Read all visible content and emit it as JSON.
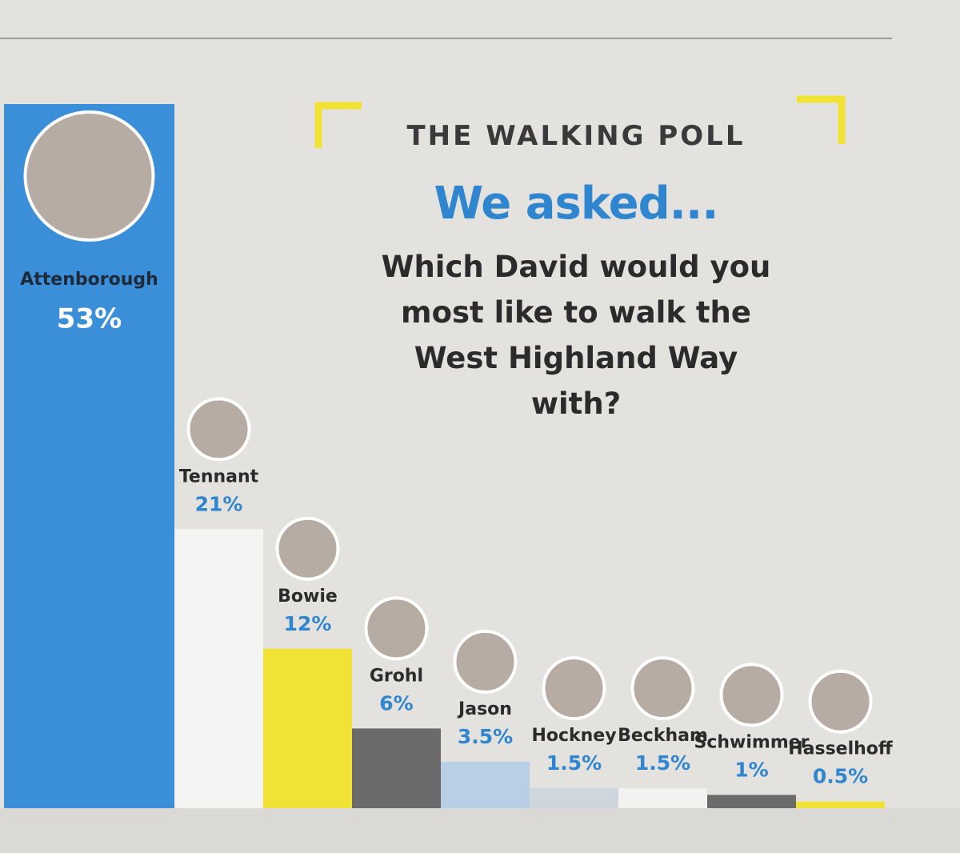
{
  "chart_data": {
    "type": "bar",
    "kicker": "THE WALKING POLL",
    "title": "We asked...",
    "subtitle": "Which David would you most like to walk the West Highland Way with?",
    "categories": [
      "Attenborough",
      "Tennant",
      "Bowie",
      "Grohl",
      "Jason",
      "Hockney",
      "Beckham",
      "Schwimmer",
      "Hasselhoff"
    ],
    "values": [
      53,
      21,
      12,
      6,
      3.5,
      1.5,
      1.5,
      1,
      0.5
    ],
    "value_labels": [
      "53%",
      "21%",
      "12%",
      "6%",
      "3.5%",
      "1.5%",
      "1.5%",
      "1%",
      "0.5%"
    ],
    "colors": [
      "#3a8fd8",
      "#f4f4f2",
      "#f2e236",
      "#6b6b6b",
      "#b8cfe6",
      "#cfd6de",
      "#f2f2f0",
      "#6b6b6b",
      "#f2e236"
    ]
  }
}
